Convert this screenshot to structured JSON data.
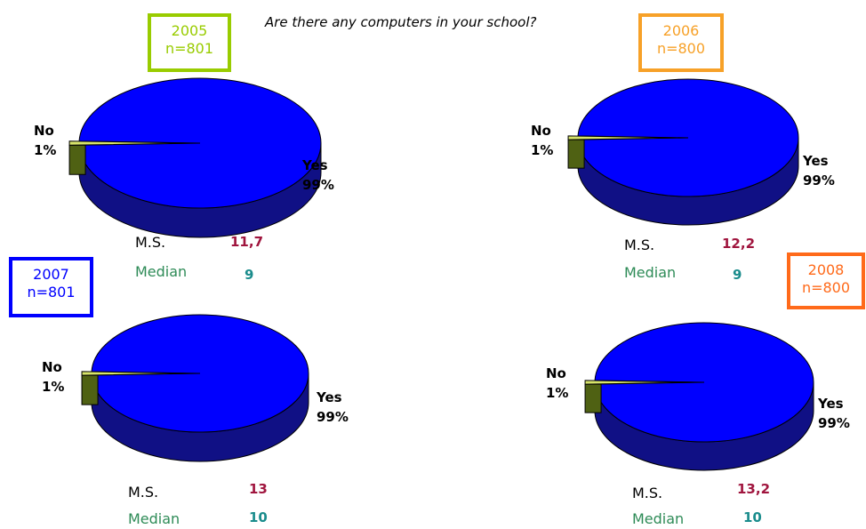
{
  "title": "Are there any computers in your school?",
  "colors": {
    "yes_top": "#0000ff",
    "yes_side": "#101085",
    "no_top": "#d7e46a",
    "no_side": "#4f6113",
    "ms_value": "#a0153e",
    "median_label": "#2e8b57",
    "median_value": "#1a8c8c"
  },
  "chart_data": [
    {
      "type": "pie",
      "title": "2005",
      "subtitle": "n=801",
      "box_color": "#99cc00",
      "slices": [
        {
          "name": "Yes",
          "label": "Yes",
          "value": 99,
          "pct_label": "99%"
        },
        {
          "name": "No",
          "label": "No",
          "value": 1,
          "pct_label": "1%"
        }
      ],
      "stats": {
        "ms_label": "M.S.",
        "ms_value": "11,7",
        "median_label": "Median",
        "median_value": "9"
      }
    },
    {
      "type": "pie",
      "title": "2006",
      "subtitle": "n=800",
      "box_color": "#f7a128",
      "slices": [
        {
          "name": "Yes",
          "label": "Yes",
          "value": 99,
          "pct_label": "99%"
        },
        {
          "name": "No",
          "label": "No",
          "value": 1,
          "pct_label": "1%"
        }
      ],
      "stats": {
        "ms_label": "M.S.",
        "ms_value": "12,2",
        "median_label": "Median",
        "median_value": "9"
      }
    },
    {
      "type": "pie",
      "title": "2007",
      "subtitle": "n=801",
      "box_color": "#0000ff",
      "slices": [
        {
          "name": "Yes",
          "label": "Yes",
          "value": 99,
          "pct_label": "99%"
        },
        {
          "name": "No",
          "label": "No",
          "value": 1,
          "pct_label": "1%"
        }
      ],
      "stats": {
        "ms_label": "M.S.",
        "ms_value": "13",
        "median_label": "Median",
        "median_value": "10"
      }
    },
    {
      "type": "pie",
      "title": "2008",
      "subtitle": "n=800",
      "box_color": "#ff6a1a",
      "slices": [
        {
          "name": "Yes",
          "label": "Yes",
          "value": 99,
          "pct_label": "99%"
        },
        {
          "name": "No",
          "label": "No",
          "value": 1,
          "pct_label": "1%"
        }
      ],
      "stats": {
        "ms_label": "M.S.",
        "ms_value": "13,2",
        "median_label": "Median",
        "median_value": "10"
      }
    }
  ]
}
